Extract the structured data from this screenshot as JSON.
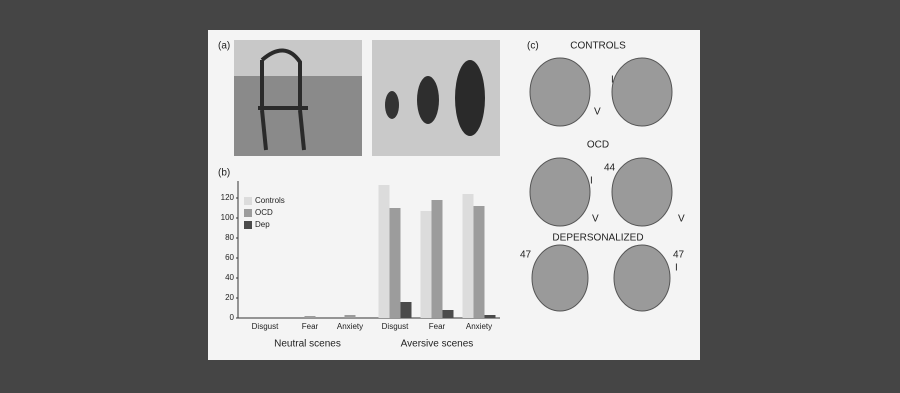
{
  "panel_labels": {
    "a": "(a)",
    "b": "(b)",
    "c": "(c)"
  },
  "chart_data": {
    "type": "bar",
    "categories": [
      "Disgust",
      "Fear",
      "Anxiety",
      "Disgust",
      "Fear",
      "Anxiety"
    ],
    "group_labels": [
      "Neutral scenes",
      "Aversive scenes"
    ],
    "series": [
      {
        "name": "Controls",
        "color": "#dcdcdc",
        "values": [
          0,
          0,
          0,
          133,
          107,
          124
        ]
      },
      {
        "name": "OCD",
        "color": "#9c9c9c",
        "values": [
          0,
          2,
          3,
          110,
          118,
          112
        ]
      },
      {
        "name": "Dep",
        "color": "#4a4a4a",
        "values": [
          0,
          0,
          0,
          16,
          8,
          3
        ]
      }
    ],
    "ylim": [
      0,
      137
    ],
    "yticks": [
      0,
      20,
      40,
      60,
      80,
      100,
      120
    ],
    "legend": "upper-left"
  },
  "brain_panel": {
    "rows": [
      "CONTROLS",
      "OCD",
      "DEPERSONALIZED"
    ],
    "annotations": [
      "V",
      "I",
      "I",
      "V",
      "44",
      "V",
      "47",
      "47",
      "I"
    ]
  }
}
